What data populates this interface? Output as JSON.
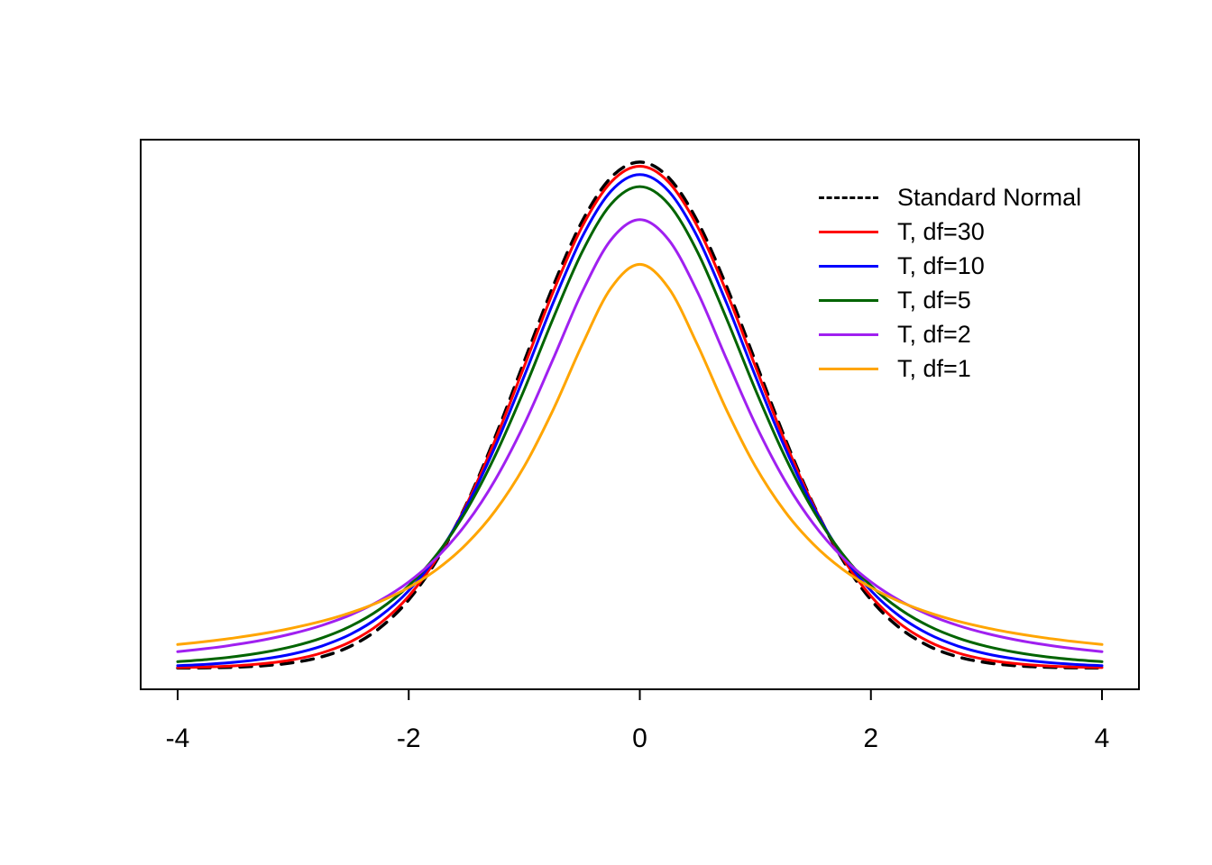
{
  "chart_data": {
    "type": "line",
    "title": "",
    "xlabel": "",
    "ylabel": "",
    "grid": false,
    "legend_position": "top-right-inside",
    "xlim": [
      -4.32,
      4.32
    ],
    "ylim": [
      -0.0166,
      0.4166
    ],
    "x_ticks": [
      -4,
      -2,
      0,
      2,
      4
    ],
    "x_tick_labels": [
      "-4",
      "-2",
      "0",
      "2",
      "4"
    ],
    "x": [
      -4,
      -3.75,
      -3.5,
      -3.25,
      -3,
      -2.75,
      -2.5,
      -2.25,
      -2,
      -1.75,
      -1.5,
      -1.25,
      -1,
      -0.75,
      -0.5,
      -0.25,
      0,
      0.25,
      0.5,
      0.75,
      1,
      1.25,
      1.5,
      1.75,
      2,
      2.25,
      2.5,
      2.75,
      3,
      3.25,
      3.5,
      3.75,
      4
    ],
    "series": [
      {
        "name": "Standard Normal",
        "color": "#000000",
        "dash": [
          13,
          10
        ],
        "width": 3.5,
        "values": [
          0.00013,
          0.00035,
          0.00087,
          0.00203,
          0.00443,
          0.00909,
          0.01753,
          0.03174,
          0.05399,
          0.08628,
          0.12952,
          0.18265,
          0.24197,
          0.30114,
          0.35207,
          0.38667,
          0.39894,
          0.38667,
          0.35207,
          0.30114,
          0.24197,
          0.18265,
          0.12952,
          0.08628,
          0.05399,
          0.03174,
          0.01753,
          0.00909,
          0.00443,
          0.00203,
          0.00087,
          0.00035,
          0.00013
        ]
      },
      {
        "name": "T, df=30",
        "color": "#FF0000",
        "dash": null,
        "width": 3,
        "values": [
          0.00052,
          0.00102,
          0.00196,
          0.00369,
          0.00678,
          0.01213,
          0.02104,
          0.03524,
          0.05685,
          0.08769,
          0.12896,
          0.18008,
          0.23799,
          0.29664,
          0.34787,
          0.38306,
          0.39562,
          0.38306,
          0.34787,
          0.29664,
          0.23799,
          0.18008,
          0.12896,
          0.08769,
          0.05685,
          0.03524,
          0.02104,
          0.01213,
          0.00678,
          0.00369,
          0.00196,
          0.00102,
          0.00052
        ]
      },
      {
        "name": "T, df=10",
        "color": "#0000FF",
        "dash": null,
        "width": 3,
        "values": [
          0.00203,
          0.00311,
          0.00478,
          0.00738,
          0.0114,
          0.01757,
          0.02694,
          0.04089,
          0.06115,
          0.08951,
          0.12744,
          0.1751,
          0.23037,
          0.28797,
          0.33969,
          0.376,
          0.38911,
          0.376,
          0.33969,
          0.28797,
          0.23037,
          0.1751,
          0.12744,
          0.08951,
          0.06115,
          0.04089,
          0.02694,
          0.01757,
          0.0114,
          0.00738,
          0.00478,
          0.00311,
          0.00203
        ]
      },
      {
        "name": "T, df=5",
        "color": "#006400",
        "dash": null,
        "width": 3,
        "values": [
          0.00512,
          0.00685,
          0.00924,
          0.01259,
          0.01729,
          0.02393,
          0.03333,
          0.04657,
          0.06509,
          0.09054,
          0.12452,
          0.1679,
          0.21968,
          0.2757,
          0.32792,
          0.36573,
          0.37961,
          0.36573,
          0.32792,
          0.2757,
          0.21968,
          0.1679,
          0.12452,
          0.09054,
          0.06509,
          0.04657,
          0.03333,
          0.02393,
          0.01729,
          0.01259,
          0.00924,
          0.00685,
          0.00512
        ]
      },
      {
        "name": "T, df=2",
        "color": "#A020F0",
        "dash": null,
        "width": 3,
        "values": [
          0.01309,
          0.01553,
          0.01859,
          0.02246,
          0.02741,
          0.03382,
          0.0422,
          0.05328,
          0.06804,
          0.08779,
          0.11413,
          0.14872,
          0.19245,
          0.24378,
          0.2963,
          0.3376,
          0.35355,
          0.3376,
          0.2963,
          0.24378,
          0.19245,
          0.14872,
          0.11413,
          0.08779,
          0.06804,
          0.05328,
          0.0422,
          0.03382,
          0.02741,
          0.02246,
          0.01859,
          0.01553,
          0.01309
        ]
      },
      {
        "name": "T, df=1",
        "color": "#FFA500",
        "dash": null,
        "width": 3,
        "values": [
          0.01872,
          0.02113,
          0.02402,
          0.02753,
          0.03183,
          0.03717,
          0.0439,
          0.0525,
          0.06366,
          0.07835,
          0.09794,
          0.12422,
          0.15915,
          0.20372,
          0.25465,
          0.29959,
          0.31831,
          0.29959,
          0.25465,
          0.20372,
          0.15915,
          0.12422,
          0.09794,
          0.07835,
          0.06366,
          0.0525,
          0.0439,
          0.03717,
          0.03183,
          0.02753,
          0.02402,
          0.02113,
          0.01872
        ]
      }
    ]
  },
  "legend": {
    "items": [
      {
        "label": "Standard Normal"
      },
      {
        "label": "T, df=30"
      },
      {
        "label": "T, df=10"
      },
      {
        "label": "T, df=5"
      },
      {
        "label": "T, df=2"
      },
      {
        "label": "T, df=1"
      }
    ]
  }
}
